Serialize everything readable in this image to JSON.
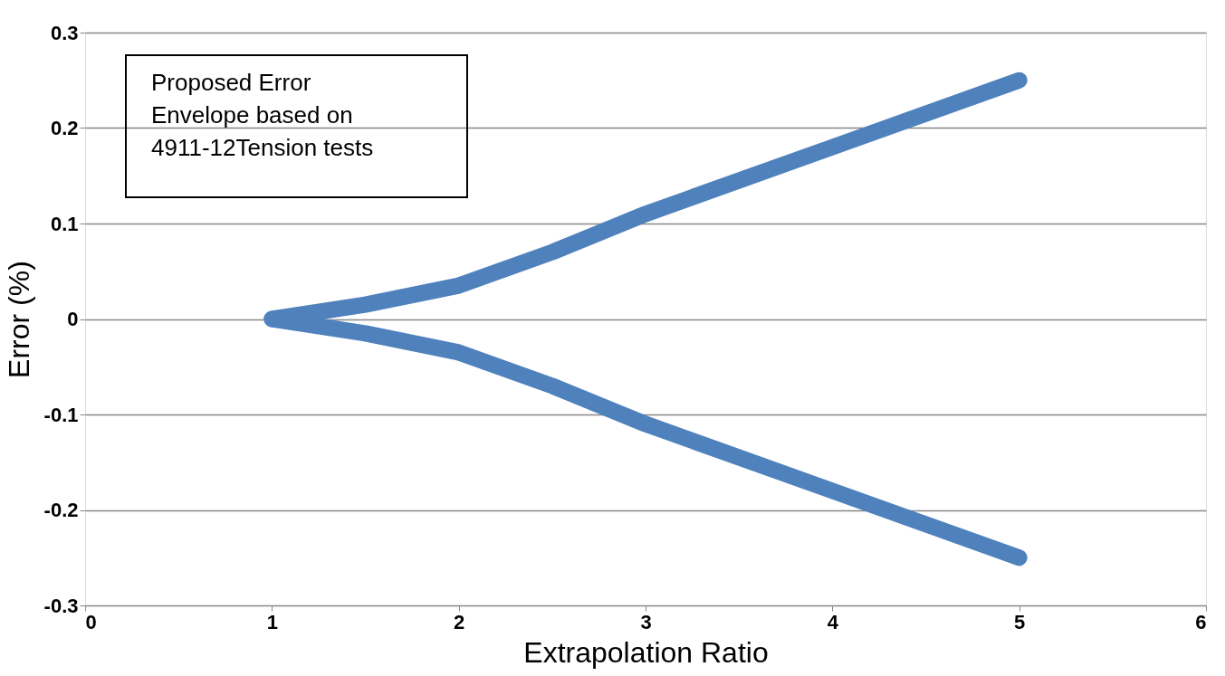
{
  "chart_data": {
    "type": "line",
    "xlabel": "Extrapolation Ratio",
    "ylabel": "Error (%)",
    "annotations": [
      "Proposed Error\nEnvelope based on\n4911-12Tension tests"
    ],
    "series": [
      {
        "color": "#4f81bd",
        "x": [
          1,
          1.5,
          2,
          2.5,
          3,
          4,
          5
        ],
        "values": [
          0,
          0.015,
          0.035,
          0.07,
          0.11,
          0.18,
          0.25
        ]
      },
      {
        "color": "#4f81bd",
        "x": [
          1,
          1.5,
          2,
          2.5,
          3,
          4,
          5
        ],
        "values": [
          0,
          -0.015,
          -0.035,
          -0.07,
          -0.11,
          -0.18,
          -0.25
        ]
      }
    ],
    "xlim": [
      0,
      6
    ],
    "xticks": [
      0,
      1,
      2,
      3,
      4,
      5,
      6
    ],
    "ylim": [
      -0.3,
      0.3
    ],
    "yticks": [
      -0.3,
      -0.2,
      -0.1,
      0,
      0.1,
      0.2,
      0.3
    ],
    "grid": "y",
    "marker": "none",
    "line_style": "solid"
  }
}
